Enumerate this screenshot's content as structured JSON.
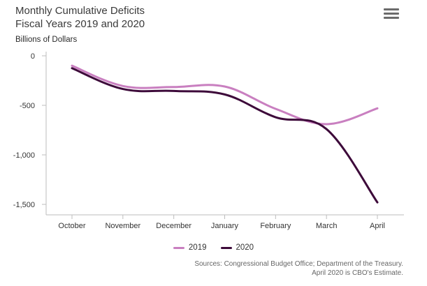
{
  "header": {
    "title_line1": "Monthly Cumulative Deficits",
    "title_line2": "Fiscal Years 2019 and 2020",
    "menu_icon": "hamburger-menu-icon"
  },
  "chart_data": {
    "type": "line",
    "title": "Monthly Cumulative Deficits Fiscal Years 2019 and 2020",
    "ylabel": "Billions of Dollars",
    "xlabel": "",
    "categories": [
      "October",
      "November",
      "December",
      "January",
      "February",
      "March",
      "April"
    ],
    "ylim": [
      -1600,
      0
    ],
    "yticks": [
      0,
      -500,
      -1000,
      -1500
    ],
    "ytick_labels": [
      "0",
      "-500",
      "-1,000",
      "-1,500"
    ],
    "grid": false,
    "legend_position": "bottom-center",
    "series": [
      {
        "name": "2019",
        "color": "#c97fc0",
        "values": [
          -100,
          -305,
          -315,
          -310,
          -535,
          -690,
          -530
        ]
      },
      {
        "name": "2020",
        "color": "#3d0a3a",
        "values": [
          -125,
          -335,
          -355,
          -390,
          -620,
          -740,
          -1480
        ]
      }
    ]
  },
  "footer": {
    "source_line1": "Sources: Congressional Budget Office; Department of the Treasury.",
    "source_line2": "April 2020 is CBO's Estimate."
  }
}
